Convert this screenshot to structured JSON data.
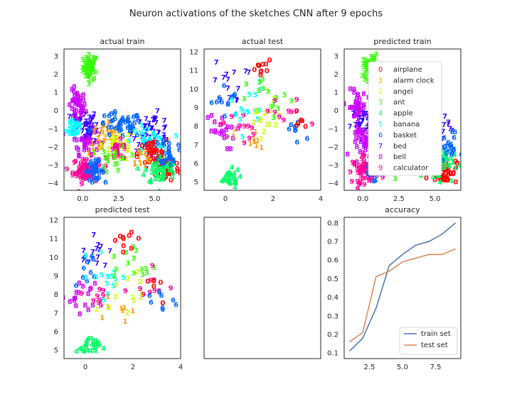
{
  "figure": {
    "suptitle": "Neuron activations of the sketches CNN after 9 epochs"
  },
  "colors": {
    "text": "#262626",
    "train_line": "#4c72b0",
    "test_line": "#dd8452"
  },
  "chart_data": [
    {
      "type": "scatter",
      "title": "actual train",
      "xlim": [
        -1.3,
        6.8
      ],
      "ylim": [
        -4.4,
        3.4
      ],
      "xticks": [
        0.0,
        2.5,
        5.0
      ],
      "xtick_labels": [
        "0.0",
        "2.5",
        "5.0"
      ],
      "yticks": [
        -4,
        -3,
        -2,
        -1,
        0,
        1,
        2,
        3
      ],
      "ytick_labels": [
        "−4",
        "−3",
        "−2",
        "−1",
        "0",
        "1",
        "2",
        "3"
      ],
      "grid": false,
      "marker": "digit glyph = class index",
      "clusters": [
        {
          "class": 3,
          "x": 0.5,
          "y": 2.4,
          "sx": 0.25,
          "sy": 0.35,
          "n": 55
        },
        {
          "class": 8,
          "x": -0.4,
          "y": 0.2,
          "sx": 0.3,
          "sy": 0.45,
          "n": 45
        },
        {
          "class": 7,
          "x": 0.1,
          "y": -0.7,
          "sx": 0.45,
          "sy": 0.35,
          "n": 30
        },
        {
          "class": 5,
          "x": -0.6,
          "y": -0.9,
          "sx": 0.3,
          "sy": 0.3,
          "n": 30
        },
        {
          "class": 8,
          "x": 0.2,
          "y": -1.7,
          "sx": 0.45,
          "sy": 0.35,
          "n": 35
        },
        {
          "class": 7,
          "x": 0.6,
          "y": -1.2,
          "sx": 0.3,
          "sy": 0.3,
          "n": 15
        },
        {
          "class": 9,
          "x": 0.2,
          "y": -3.3,
          "sx": 0.45,
          "sy": 0.35,
          "n": 70
        },
        {
          "class": 6,
          "x": 0.8,
          "y": -3.3,
          "sx": 0.35,
          "sy": 0.25,
          "n": 35
        },
        {
          "class": 1,
          "x": 1.6,
          "y": -1.5,
          "sx": 0.6,
          "sy": 0.45,
          "n": 35
        },
        {
          "class": 2,
          "x": 2.5,
          "y": -1.9,
          "sx": 0.6,
          "sy": 0.45,
          "n": 35
        },
        {
          "class": 6,
          "x": 2.6,
          "y": -0.8,
          "sx": 0.8,
          "sy": 0.35,
          "n": 45
        },
        {
          "class": 9,
          "x": 2.5,
          "y": -2.3,
          "sx": 0.4,
          "sy": 0.3,
          "n": 20
        },
        {
          "class": 3,
          "x": 2.2,
          "y": -2.7,
          "sx": 0.5,
          "sy": 0.4,
          "n": 20
        },
        {
          "class": 7,
          "x": 4.8,
          "y": -1.2,
          "sx": 0.65,
          "sy": 0.5,
          "n": 55
        },
        {
          "class": 5,
          "x": 4.6,
          "y": -1.7,
          "sx": 0.6,
          "sy": 0.4,
          "n": 35
        },
        {
          "class": 0,
          "x": 4.8,
          "y": -2.4,
          "sx": 0.5,
          "sy": 0.4,
          "n": 40
        },
        {
          "class": 0,
          "x": 5.8,
          "y": -3.2,
          "sx": 0.45,
          "sy": 0.35,
          "n": 45
        },
        {
          "class": 4,
          "x": 5.4,
          "y": -3.3,
          "sx": 0.55,
          "sy": 0.4,
          "n": 55
        },
        {
          "class": 6,
          "x": 6.0,
          "y": -2.2,
          "sx": 0.3,
          "sy": 0.4,
          "n": 25
        },
        {
          "class": 1,
          "x": 4.0,
          "y": -2.6,
          "sx": 0.35,
          "sy": 0.3,
          "n": 12
        }
      ]
    },
    {
      "type": "scatter",
      "title": "actual test",
      "xlim": [
        -0.9,
        4.0
      ],
      "ylim": [
        4.55,
        12.15
      ],
      "xticks": [
        0,
        2,
        4
      ],
      "xtick_labels": [
        "0",
        "2",
        "4"
      ],
      "yticks": [
        5,
        6,
        7,
        8,
        9,
        10,
        11,
        12
      ],
      "ytick_labels": [
        "5",
        "6",
        "7",
        "8",
        "9",
        "10",
        "11",
        "12"
      ],
      "grid": false,
      "marker": "digit glyph = class index",
      "clusters": [
        {
          "class": 4,
          "x": 0.1,
          "y": 5.2,
          "sx": 0.25,
          "sy": 0.25,
          "n": 28
        },
        {
          "class": 8,
          "x": -0.3,
          "y": 7.7,
          "sx": 0.35,
          "sy": 0.5,
          "n": 20
        },
        {
          "class": 7,
          "x": 0.2,
          "y": 10.3,
          "sx": 0.35,
          "sy": 0.6,
          "n": 14
        },
        {
          "class": 6,
          "x": 0.0,
          "y": 9.3,
          "sx": 0.3,
          "sy": 0.5,
          "n": 12
        },
        {
          "class": 9,
          "x": 0.5,
          "y": 7.9,
          "sx": 0.35,
          "sy": 0.5,
          "n": 12
        },
        {
          "class": 5,
          "x": 0.9,
          "y": 9.0,
          "sx": 0.4,
          "sy": 0.7,
          "n": 16
        },
        {
          "class": 1,
          "x": 1.1,
          "y": 7.3,
          "sx": 0.35,
          "sy": 0.4,
          "n": 10
        },
        {
          "class": 2,
          "x": 1.7,
          "y": 8.2,
          "sx": 0.4,
          "sy": 0.6,
          "n": 14
        },
        {
          "class": 3,
          "x": 1.9,
          "y": 9.4,
          "sx": 0.5,
          "sy": 0.6,
          "n": 14
        },
        {
          "class": 0,
          "x": 1.6,
          "y": 11.0,
          "sx": 0.3,
          "sy": 0.3,
          "n": 10
        },
        {
          "class": 9,
          "x": 2.5,
          "y": 8.6,
          "sx": 0.5,
          "sy": 0.5,
          "n": 10
        },
        {
          "class": 6,
          "x": 3.0,
          "y": 7.8,
          "sx": 0.4,
          "sy": 0.4,
          "n": 8
        },
        {
          "class": 0,
          "x": 3.3,
          "y": 8.4,
          "sx": 0.3,
          "sy": 0.4,
          "n": 6
        }
      ]
    },
    {
      "type": "scatter",
      "title": "predicted train",
      "xlim": [
        -1.3,
        6.8
      ],
      "ylim": [
        -4.4,
        3.4
      ],
      "xticks": [
        0.0,
        2.5,
        5.0
      ],
      "xtick_labels": [
        "0.0",
        "2.5",
        "5.0"
      ],
      "yticks": [
        -4,
        -3,
        -2,
        -1,
        0,
        1,
        2,
        3
      ],
      "ytick_labels": [
        "−4",
        "−3",
        "−2",
        "−1",
        "0",
        "1",
        "2",
        "3"
      ],
      "grid": false,
      "marker": "digit glyph = predicted class index",
      "clusters": [
        {
          "class": 3,
          "x": 0.5,
          "y": 2.4,
          "sx": 0.25,
          "sy": 0.35,
          "n": 55
        },
        {
          "class": 8,
          "x": -0.4,
          "y": 0.2,
          "sx": 0.3,
          "sy": 0.45,
          "n": 45
        },
        {
          "class": 7,
          "x": 0.1,
          "y": -0.7,
          "sx": 0.45,
          "sy": 0.35,
          "n": 30
        },
        {
          "class": 8,
          "x": 0.2,
          "y": -1.7,
          "sx": 0.45,
          "sy": 0.4,
          "n": 40
        },
        {
          "class": 9,
          "x": 0.2,
          "y": -3.3,
          "sx": 0.45,
          "sy": 0.35,
          "n": 70
        },
        {
          "class": 6,
          "x": 0.8,
          "y": -3.3,
          "sx": 0.35,
          "sy": 0.25,
          "n": 30
        },
        {
          "class": 5,
          "x": 1.7,
          "y": -0.6,
          "sx": 0.4,
          "sy": 0.3,
          "n": 12
        },
        {
          "class": 1,
          "x": 1.6,
          "y": -1.6,
          "sx": 0.6,
          "sy": 0.45,
          "n": 35
        },
        {
          "class": 2,
          "x": 2.6,
          "y": -2.0,
          "sx": 0.6,
          "sy": 0.45,
          "n": 40
        },
        {
          "class": 6,
          "x": 2.7,
          "y": -0.6,
          "sx": 0.7,
          "sy": 0.35,
          "n": 40
        },
        {
          "class": 3,
          "x": 2.4,
          "y": -2.9,
          "sx": 0.5,
          "sy": 0.4,
          "n": 20
        },
        {
          "class": 7,
          "x": 4.6,
          "y": -1.0,
          "sx": 0.7,
          "sy": 0.45,
          "n": 60
        },
        {
          "class": 5,
          "x": 4.2,
          "y": -2.3,
          "sx": 0.45,
          "sy": 0.4,
          "n": 20
        },
        {
          "class": 0,
          "x": 5.6,
          "y": -3.3,
          "sx": 0.45,
          "sy": 0.35,
          "n": 55
        },
        {
          "class": 4,
          "x": 5.3,
          "y": -2.9,
          "sx": 0.5,
          "sy": 0.45,
          "n": 45
        },
        {
          "class": 6,
          "x": 6.0,
          "y": -2.0,
          "sx": 0.3,
          "sy": 0.4,
          "n": 20
        }
      ]
    },
    {
      "type": "scatter",
      "title": "predicted test",
      "xlim": [
        -0.9,
        4.0
      ],
      "ylim": [
        4.55,
        12.15
      ],
      "xticks": [
        0,
        2,
        4
      ],
      "xtick_labels": [
        "0",
        "2",
        "4"
      ],
      "yticks": [
        5,
        6,
        7,
        8,
        9,
        10,
        11,
        12
      ],
      "ytick_labels": [
        "5",
        "6",
        "7",
        "8",
        "9",
        "10",
        "11",
        "12"
      ],
      "grid": false,
      "marker": "digit glyph = predicted class index",
      "clusters": [
        {
          "class": 4,
          "x": 0.1,
          "y": 5.2,
          "sx": 0.25,
          "sy": 0.25,
          "n": 28
        },
        {
          "class": 8,
          "x": -0.3,
          "y": 7.6,
          "sx": 0.35,
          "sy": 0.5,
          "n": 20
        },
        {
          "class": 7,
          "x": 0.3,
          "y": 10.4,
          "sx": 0.35,
          "sy": 0.6,
          "n": 14
        },
        {
          "class": 6,
          "x": 0.1,
          "y": 9.2,
          "sx": 0.3,
          "sy": 0.5,
          "n": 10
        },
        {
          "class": 9,
          "x": 0.5,
          "y": 7.9,
          "sx": 0.35,
          "sy": 0.5,
          "n": 10
        },
        {
          "class": 5,
          "x": 1.0,
          "y": 9.0,
          "sx": 0.4,
          "sy": 0.6,
          "n": 14
        },
        {
          "class": 1,
          "x": 1.2,
          "y": 7.3,
          "sx": 0.35,
          "sy": 0.4,
          "n": 8
        },
        {
          "class": 2,
          "x": 1.8,
          "y": 8.1,
          "sx": 0.4,
          "sy": 0.6,
          "n": 12
        },
        {
          "class": 3,
          "x": 2.0,
          "y": 9.6,
          "sx": 0.5,
          "sy": 0.6,
          "n": 14
        },
        {
          "class": 0,
          "x": 1.7,
          "y": 11.0,
          "sx": 0.3,
          "sy": 0.3,
          "n": 10
        },
        {
          "class": 9,
          "x": 2.6,
          "y": 8.5,
          "sx": 0.5,
          "sy": 0.5,
          "n": 10
        },
        {
          "class": 6,
          "x": 3.1,
          "y": 7.6,
          "sx": 0.4,
          "sy": 0.4,
          "n": 8
        },
        {
          "class": 0,
          "x": 3.4,
          "y": 8.5,
          "sx": 0.3,
          "sy": 0.4,
          "n": 5
        }
      ]
    },
    {
      "type": "legend",
      "legend_placement": "center",
      "items": [
        {
          "symbol": "0",
          "label": "airplane",
          "color": "#ff0000"
        },
        {
          "symbol": "1",
          "label": "alarm clock",
          "color": "#ff9900"
        },
        {
          "symbol": "2",
          "label": "angel",
          "color": "#ccff00"
        },
        {
          "symbol": "3",
          "label": "ant",
          "color": "#33ff00"
        },
        {
          "symbol": "4",
          "label": "apple",
          "color": "#00ff66"
        },
        {
          "symbol": "5",
          "label": "banana",
          "color": "#00ffff"
        },
        {
          "symbol": "6",
          "label": "basket",
          "color": "#0066ff"
        },
        {
          "symbol": "7",
          "label": "bed",
          "color": "#3300ff"
        },
        {
          "symbol": "8",
          "label": "bell",
          "color": "#cc00ff"
        },
        {
          "symbol": "9",
          "label": "calculator",
          "color": "#ff0099"
        }
      ]
    },
    {
      "type": "line",
      "title": "accuracy",
      "x": [
        1,
        2,
        3,
        4,
        5,
        6,
        7,
        8,
        9
      ],
      "xlim": [
        0.6,
        9.4
      ],
      "ylim": [
        0.07,
        0.83
      ],
      "xticks": [
        2.5,
        5.0,
        7.5
      ],
      "xtick_labels": [
        "2.5",
        "5.0",
        "7.5"
      ],
      "yticks": [
        0.1,
        0.2,
        0.3,
        0.4,
        0.5,
        0.6,
        0.7,
        0.8
      ],
      "ytick_labels": [
        "0.1",
        "0.2",
        "0.3",
        "0.4",
        "0.5",
        "0.6",
        "0.7",
        "0.8"
      ],
      "grid": false,
      "legend_placement": "lower right",
      "series": [
        {
          "name": "train set",
          "color": "#4c72b0",
          "values": [
            0.11,
            0.18,
            0.34,
            0.57,
            0.63,
            0.68,
            0.7,
            0.74,
            0.8
          ]
        },
        {
          "name": "test set",
          "color": "#dd8452",
          "values": [
            0.16,
            0.21,
            0.51,
            0.54,
            0.59,
            0.61,
            0.63,
            0.63,
            0.66
          ]
        }
      ]
    }
  ]
}
